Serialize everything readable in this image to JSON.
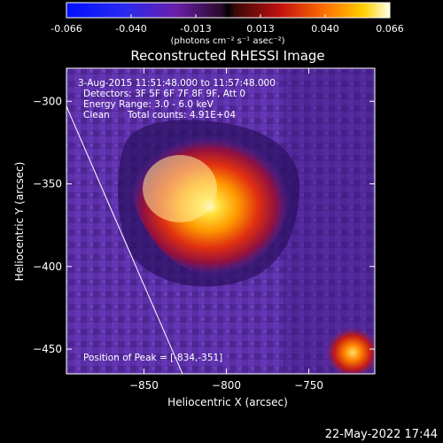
{
  "colorbar": {
    "ticks": [
      "-0.066",
      "-0.040",
      "-0.013",
      "0.013",
      "0.040",
      "0.066"
    ],
    "units_label": "(photons cm⁻² s⁻¹ asec⁻²)",
    "range": [
      -0.066,
      0.066
    ]
  },
  "title": "Reconstructed RHESSI Image",
  "info": {
    "time_range": "3-Aug-2015 11:51:48.000 to 11:57:48.000",
    "detectors": "Detectors: 3F 5F 6F 7F 8F 9F, Att 0",
    "energy": "Energy Range: 3.0 - 6.0 keV",
    "clean": "Clean",
    "total_counts": "Total counts: 4.91E+04",
    "peak": "Position of Peak = [-834,-351]"
  },
  "footer_date": "22-May-2022 17:44",
  "chart_data": {
    "type": "heatmap",
    "title": "Reconstructed RHESSI Image",
    "xlabel": "Heliocentric X (arcsec)",
    "ylabel": "Heliocentric Y (arcsec)",
    "xlim": [
      -897,
      -710
    ],
    "ylim": [
      -465,
      -280
    ],
    "x_ticks": [
      -850,
      -800,
      -750
    ],
    "x_tick_labels": [
      "−850",
      "−800",
      "−750"
    ],
    "y_ticks": [
      -300,
      -350,
      -400,
      -450
    ],
    "y_tick_labels": [
      "−300",
      "−350",
      "−400",
      "−450"
    ],
    "sources": [
      {
        "x": -834,
        "y": -351,
        "peak": 0.066
      },
      {
        "x": -719,
        "y": -452,
        "peak": 0.05
      }
    ],
    "limb_line": [
      [
        -897,
        -296
      ],
      [
        -823,
        -465
      ]
    ]
  }
}
